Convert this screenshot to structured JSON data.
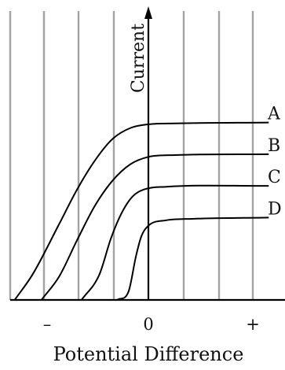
{
  "chart_data": {
    "type": "line",
    "title": "",
    "xlabel": "Potential Difference",
    "ylabel": "Current",
    "x_ticks": [
      "–",
      "0",
      "+"
    ],
    "xlim": [
      -1.55,
      1.35
    ],
    "ylim": [
      0,
      1
    ],
    "grid": true,
    "legend": "none",
    "curve_labels": "right end of each curve",
    "colors": {
      "curve": "#000000",
      "gridline": "#a3a3a3",
      "axis": "#000000"
    },
    "series": [
      {
        "name": "A",
        "points": [
          [
            -1.5,
            0.0
          ],
          [
            -1.3,
            0.14
          ],
          [
            -1.0,
            0.42
          ],
          [
            -0.8,
            0.61
          ],
          [
            -0.6,
            0.77
          ],
          [
            -0.4,
            0.89
          ],
          [
            -0.2,
            0.95
          ],
          [
            0.0,
            0.97
          ],
          [
            0.3,
            0.975
          ],
          [
            1.35,
            0.98
          ]
        ]
      },
      {
        "name": "B",
        "points": [
          [
            -1.2,
            0.0
          ],
          [
            -1.0,
            0.13
          ],
          [
            -0.8,
            0.33
          ],
          [
            -0.6,
            0.52
          ],
          [
            -0.4,
            0.66
          ],
          [
            -0.2,
            0.75
          ],
          [
            0.0,
            0.79
          ],
          [
            0.3,
            0.8
          ],
          [
            1.35,
            0.805
          ]
        ]
      },
      {
        "name": "C",
        "points": [
          [
            -0.75,
            0.0
          ],
          [
            -0.55,
            0.14
          ],
          [
            -0.42,
            0.34
          ],
          [
            -0.3,
            0.48
          ],
          [
            -0.18,
            0.57
          ],
          [
            -0.05,
            0.61
          ],
          [
            0.2,
            0.625
          ],
          [
            1.35,
            0.63
          ]
        ]
      },
      {
        "name": "D",
        "points": [
          [
            -0.35,
            0.0
          ],
          [
            -0.22,
            0.05
          ],
          [
            -0.14,
            0.24
          ],
          [
            -0.08,
            0.35
          ],
          [
            0.0,
            0.41
          ],
          [
            0.2,
            0.44
          ],
          [
            0.5,
            0.448
          ],
          [
            1.35,
            0.455
          ]
        ]
      }
    ]
  }
}
